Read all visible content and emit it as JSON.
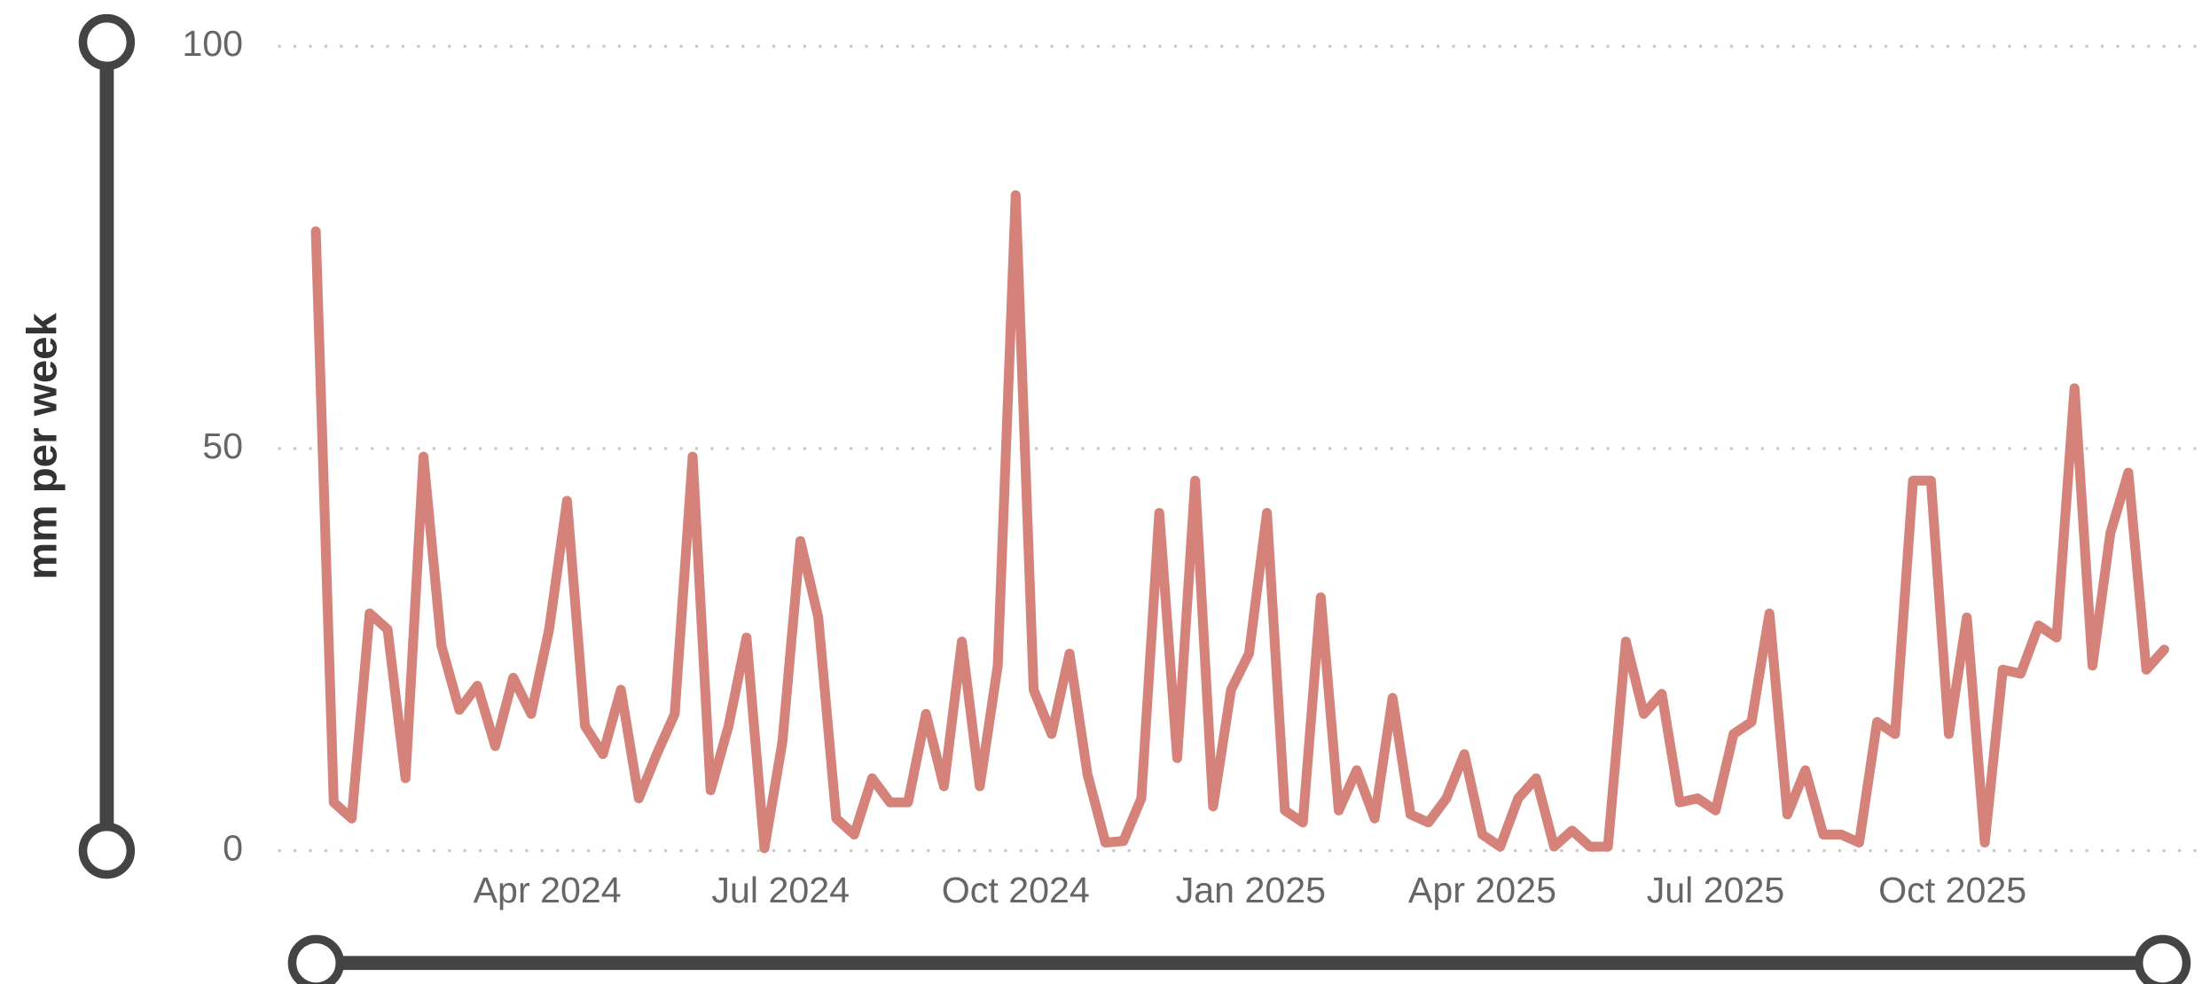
{
  "chart_data": {
    "type": "line",
    "y_label": "mm per week",
    "color": "#d5837a",
    "values": [
      77,
      6,
      4,
      29.5,
      27.5,
      9,
      49,
      25.5,
      17.5,
      20.5,
      13,
      21.5,
      17,
      27.5,
      43.5,
      15.5,
      12,
      20,
      6.5,
      12,
      17,
      49,
      7.5,
      15.5,
      26.5,
      0.3,
      13.5,
      38.5,
      29,
      4,
      2,
      9,
      6,
      6,
      17,
      8,
      26,
      8,
      23,
      81.5,
      20,
      14.5,
      24.5,
      9.5,
      1,
      1.2,
      6.5,
      42,
      11.5,
      46,
      5.5,
      20,
      24.5,
      42,
      5,
      3.5,
      31.5,
      5,
      10,
      4,
      19,
      4.5,
      3.5,
      6.5,
      12,
      2,
      0.5,
      6.5,
      9,
      0.5,
      2.5,
      0.5,
      0.5,
      26,
      17,
      19.5,
      6,
      6.5,
      5,
      14.5,
      16,
      29.5,
      4.5,
      10,
      2,
      2,
      1,
      16,
      14.5,
      46,
      46,
      14.5,
      29,
      1,
      22.5,
      22,
      28,
      26.5,
      57.5,
      23,
      39.5,
      47,
      22.5,
      25
    ],
    "xlim": [
      -2.1,
      105.1
    ],
    "xticks": [
      {
        "value": 12.9,
        "label": "Apr 2024"
      },
      {
        "value": 25.9,
        "label": "Jul 2024"
      },
      {
        "value": 39.0,
        "label": "Oct 2024"
      },
      {
        "value": 52.1,
        "label": "Jan 2025"
      },
      {
        "value": 65.0,
        "label": "Apr 2025"
      },
      {
        "value": 78.0,
        "label": "Jul 2025"
      },
      {
        "value": 91.2,
        "label": "Oct 2025"
      }
    ],
    "ylim": [
      0,
      100
    ],
    "yticks": [
      0,
      50,
      100
    ],
    "grid": true
  }
}
